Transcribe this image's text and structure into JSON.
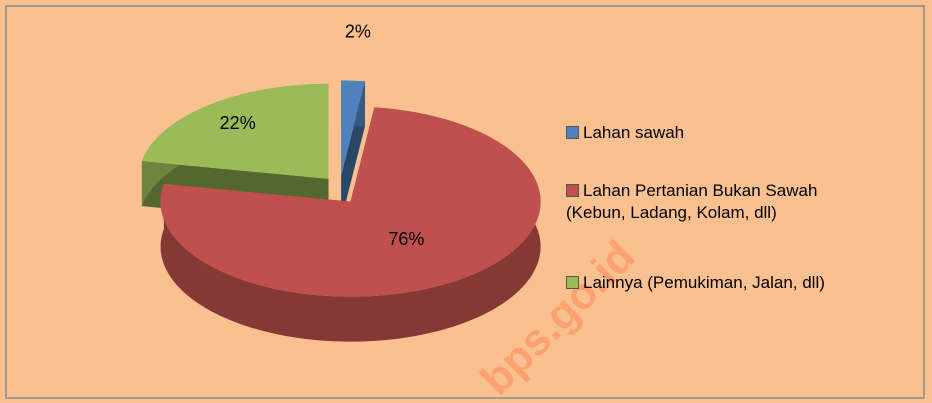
{
  "chart_data": {
    "type": "pie",
    "categories": [
      "Lahan sawah",
      "Lahan Pertanian Bukan Sawah (Kebun, Ladang, Kolam, dll)",
      "Lainnya (Pemukiman, Jalan, dll)"
    ],
    "values": [
      2,
      76,
      22
    ],
    "value_labels": [
      "2%",
      "76%",
      "22%"
    ],
    "colors": [
      "#4f81bd",
      "#c0504d",
      "#9bbb59"
    ],
    "legend": "right",
    "watermark": "bps.go.id"
  }
}
